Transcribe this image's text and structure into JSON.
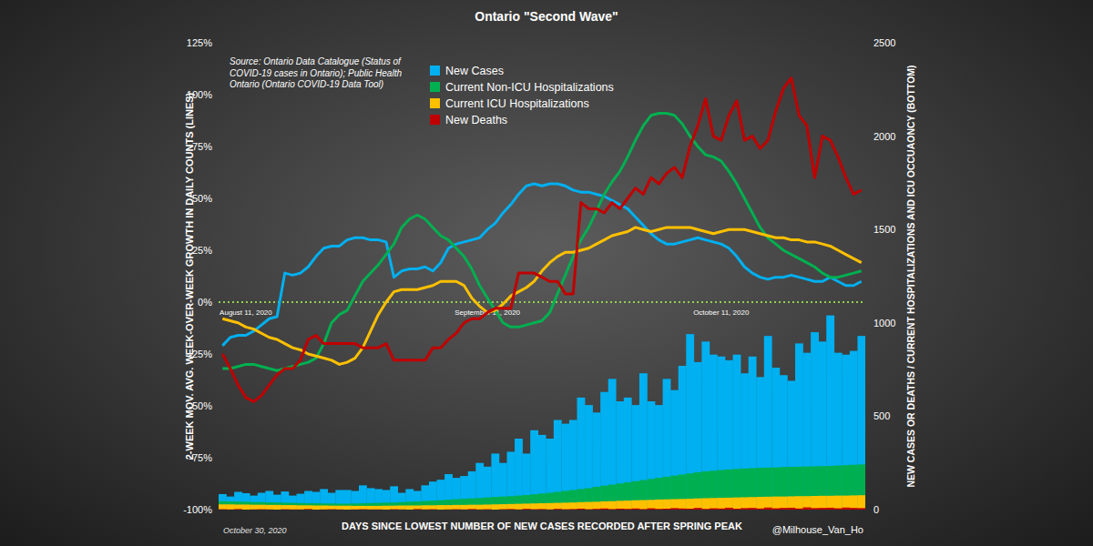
{
  "chart_data": {
    "type": "line",
    "title": "Ontario \"Second Wave\"",
    "source": [
      "Source: Ontario Data Catalogue (Status of",
      "COVID-19 cases in Ontario); Public Health",
      "Ontario (Ontario COVID-19 Data Tool)"
    ],
    "y_label": "2-WEEK MOV. AVG. WEEK-OVER-WEEK GROWTH IN DAILY COUNTS (LINES)",
    "y2_label": "NEW CASES OR DEATHS / CURRENT HOSPITALIZATIONS AND ICU OCCUAONCY (BOTTOM)",
    "x_label": "DAYS SINCE LOWEST NUMBER OF NEW CASES RECORDED AFTER SPRING PEAK",
    "note": "October 30, 2020",
    "credit": "@Milhouse_Van_Ho",
    "legend": "upper left",
    "grid": false,
    "stacked": false,
    "categories": [
      null,
      null,
      null,
      "August 11, 2020",
      null,
      null,
      null,
      null,
      null,
      null,
      null,
      null,
      null,
      null,
      null,
      null,
      null,
      null,
      null,
      null,
      null,
      null,
      null,
      null,
      null,
      null,
      null,
      null,
      null,
      null,
      null,
      null,
      null,
      null,
      "September 11, 2020",
      null,
      null,
      null,
      null,
      null,
      null,
      null,
      null,
      null,
      null,
      null,
      null,
      null,
      null,
      null,
      null,
      null,
      null,
      null,
      null,
      null,
      null,
      null,
      null,
      null,
      null,
      null,
      null,
      null,
      "October 11, 2020",
      null,
      null,
      null,
      null,
      null,
      null,
      null,
      null,
      null,
      null,
      null,
      null,
      null,
      null,
      null,
      null,
      null,
      null
    ],
    "ylim": [
      -100,
      125
    ],
    "yticks": [
      {
        "value": -100,
        "label": "-100%"
      },
      {
        "value": -75,
        "label": "-75%"
      },
      {
        "value": -50,
        "label": "-50%"
      },
      {
        "value": -25,
        "label": "-25%"
      },
      {
        "value": 0,
        "label": "0%"
      },
      {
        "value": 25,
        "label": "25%"
      },
      {
        "value": 50,
        "label": "50%"
      },
      {
        "value": 75,
        "label": "75%"
      },
      {
        "value": 100,
        "label": "100%"
      },
      {
        "value": 125,
        "label": "125%"
      }
    ],
    "y2lim": [
      0,
      2500
    ],
    "y2ticks": [
      0,
      500,
      1000,
      1500,
      2000,
      2500
    ],
    "series": [
      {
        "name": "New Cases",
        "color": "#00b0f0",
        "values": [
          -21,
          -17,
          -16,
          -16,
          -14,
          -11,
          -8,
          -7,
          14,
          13,
          14,
          17,
          22,
          26,
          27,
          27,
          30,
          31,
          31,
          30,
          30,
          29,
          12,
          15,
          16,
          16,
          17,
          15,
          19,
          26,
          28,
          29,
          30,
          31,
          35,
          38,
          43,
          47,
          52,
          56,
          57,
          56,
          57,
          57,
          56,
          54,
          53,
          53,
          52,
          51,
          49,
          47,
          45,
          41,
          37,
          33,
          30,
          28,
          28,
          29,
          30,
          31,
          30,
          29,
          28,
          26,
          22,
          17,
          14,
          12,
          11,
          12,
          12,
          13,
          12,
          11,
          10,
          10,
          12,
          10,
          8,
          8,
          10
        ],
        "counts": [
          83,
          70,
          95,
          88,
          75,
          90,
          100,
          80,
          97,
          75,
          85,
          100,
          95,
          110,
          90,
          105,
          105,
          100,
          130,
          115,
          110,
          105,
          125,
          90,
          110,
          100,
          130,
          150,
          160,
          190,
          170,
          180,
          205,
          250,
          230,
          300,
          250,
          310,
          380,
          300,
          425,
          400,
          380,
          480,
          460,
          480,
          600,
          560,
          520,
          630,
          700,
          580,
          600,
          560,
          730,
          580,
          560,
          700,
          640,
          770,
          940,
          790,
          900,
          830,
          820,
          800,
          830,
          730,
          820,
          710,
          930,
          760,
          720,
          690,
          890,
          840,
          950,
          900,
          1040,
          840,
          830,
          850,
          930
        ]
      },
      {
        "name": "Current Non-ICU Hospitalizations",
        "color": "#00b050",
        "values": [
          -32,
          -32,
          -31,
          -30,
          -30,
          -31,
          -32,
          -33,
          -32,
          -31,
          -30,
          -29,
          -27,
          -20,
          -10,
          -6,
          -4,
          3,
          10,
          14,
          18,
          23,
          28,
          36,
          40,
          42,
          40,
          36,
          32,
          30,
          26,
          22,
          16,
          8,
          2,
          -4,
          -10,
          -12,
          -12,
          -11,
          -10,
          -9,
          -5,
          4,
          13,
          22,
          30,
          36,
          44,
          52,
          58,
          63,
          70,
          78,
          85,
          90,
          91,
          91,
          90,
          86,
          80,
          75,
          71,
          70,
          68,
          63,
          57,
          50,
          43,
          36,
          31,
          28,
          25,
          23,
          21,
          19,
          17,
          14,
          12,
          12,
          13,
          14,
          15
        ],
        "counts": [
          45,
          44,
          43,
          42,
          40,
          40,
          39,
          38,
          37,
          36,
          35,
          34,
          34,
          33,
          33,
          32,
          32,
          33,
          34,
          35,
          36,
          37,
          38,
          40,
          42,
          44,
          46,
          48,
          50,
          53,
          56,
          58,
          60,
          62,
          65,
          68,
          70,
          72,
          75,
          78,
          82,
          86,
          90,
          95,
          100,
          105,
          110,
          115,
          122,
          128,
          134,
          140,
          146,
          152,
          158,
          164,
          170,
          176,
          182,
          188,
          194,
          200,
          205,
          208,
          212,
          215,
          218,
          220,
          222,
          224,
          225,
          226,
          228,
          229,
          230,
          231,
          232,
          233,
          234,
          236,
          238,
          240,
          242
        ]
      },
      {
        "name": "Current ICU Hospitalizations",
        "color": "#ffc000",
        "values": [
          -8,
          -9,
          -10,
          -12,
          -13,
          -15,
          -17,
          -18,
          -20,
          -22,
          -23,
          -25,
          -26,
          -27,
          -28,
          -30,
          -29,
          -27,
          -22,
          -14,
          -6,
          0,
          5,
          6,
          6,
          6,
          7,
          8,
          10,
          10,
          10,
          8,
          2,
          -2,
          -5,
          -4,
          -1,
          3,
          5,
          7,
          10,
          15,
          19,
          22,
          24,
          24,
          25,
          26,
          28,
          30,
          32,
          33,
          34,
          36,
          35,
          34,
          35,
          36,
          36,
          36,
          36,
          35,
          34,
          33,
          34,
          35,
          35,
          35,
          34,
          33,
          32,
          31,
          31,
          30,
          30,
          29,
          29,
          28,
          27,
          25,
          23,
          21,
          19
        ],
        "counts": [
          28,
          28,
          27,
          27,
          26,
          26,
          25,
          25,
          24,
          24,
          23,
          23,
          22,
          22,
          21,
          21,
          21,
          20,
          20,
          20,
          20,
          21,
          21,
          22,
          22,
          22,
          23,
          23,
          24,
          24,
          25,
          25,
          26,
          26,
          27,
          28,
          29,
          30,
          31,
          32,
          33,
          34,
          35,
          36,
          37,
          38,
          40,
          41,
          42,
          44,
          45,
          47,
          48,
          50,
          51,
          52,
          54,
          55,
          56,
          57,
          58,
          60,
          61,
          62,
          63,
          64,
          65,
          66,
          67,
          68,
          69,
          70,
          70,
          71,
          72,
          72,
          73,
          74,
          74,
          75,
          75,
          76,
          77
        ]
      },
      {
        "name": "New Deaths",
        "color": "#c00000",
        "values": [
          -25,
          -32,
          -40,
          -46,
          -48,
          -45,
          -40,
          -35,
          -32,
          -32,
          -28,
          -18,
          -16,
          -20,
          -20,
          -20,
          -20,
          -20,
          -22,
          -22,
          -22,
          -20,
          -28,
          -28,
          -28,
          -28,
          -28,
          -22,
          -22,
          -18,
          -15,
          -10,
          -8,
          -8,
          -5,
          -3,
          -3,
          -3,
          14,
          14,
          14,
          12,
          10,
          10,
          4,
          4,
          48,
          45,
          45,
          43,
          48,
          45,
          50,
          55,
          52,
          60,
          57,
          62,
          65,
          60,
          75,
          85,
          98,
          80,
          78,
          90,
          97,
          78,
          80,
          74,
          78,
          92,
          103,
          108,
          90,
          85,
          60,
          80,
          78,
          70,
          60,
          52,
          54
        ],
        "counts": [
          2,
          1,
          3,
          0,
          1,
          2,
          1,
          0,
          2,
          1,
          1,
          3,
          0,
          1,
          2,
          1,
          0,
          1,
          2,
          1,
          1,
          0,
          2,
          1,
          0,
          3,
          1,
          2,
          0,
          1,
          2,
          1,
          3,
          1,
          2,
          0,
          2,
          3,
          1,
          4,
          2,
          3,
          1,
          4,
          2,
          3,
          5,
          2,
          4,
          6,
          3,
          5,
          4,
          6,
          3,
          7,
          4,
          5,
          8,
          6,
          5,
          9,
          4,
          7,
          6,
          10,
          5,
          8,
          9,
          6,
          11,
          7,
          9,
          10,
          6,
          12,
          8,
          9,
          10,
          7,
          11,
          9,
          8
        ]
      }
    ]
  }
}
